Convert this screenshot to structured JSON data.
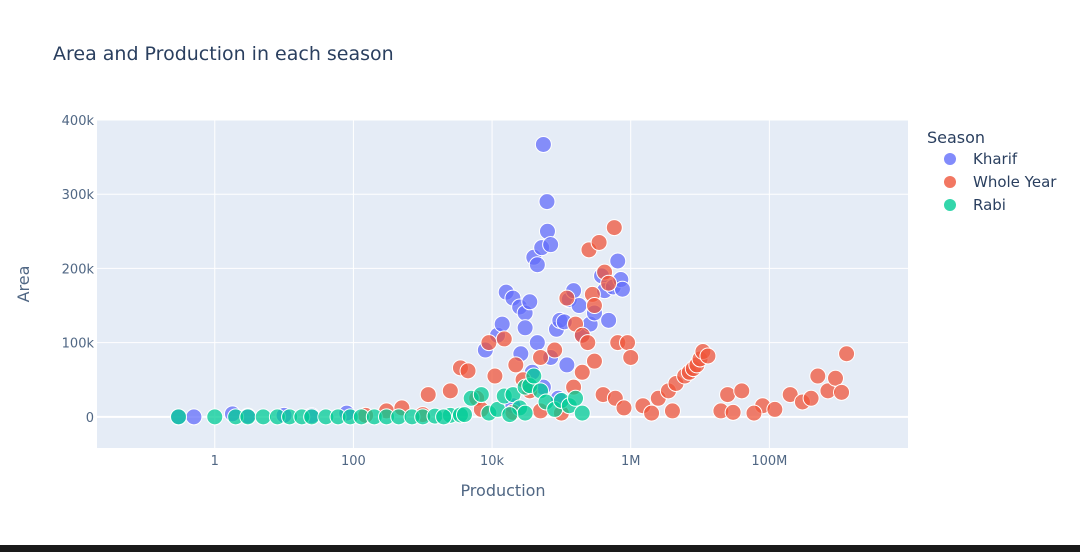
{
  "chart_data": {
    "type": "scatter",
    "title": "Area and Production in each season",
    "xlabel": "Production",
    "ylabel": "Area",
    "x_scale": "log",
    "xlim": [
      0.02,
      10000000000
    ],
    "ylim": [
      -42000,
      400000
    ],
    "x_ticks": [
      {
        "value": 1,
        "label": "1"
      },
      {
        "value": 100,
        "label": "100"
      },
      {
        "value": 10000,
        "label": "10k"
      },
      {
        "value": 1000000,
        "label": "1M"
      },
      {
        "value": 100000000,
        "label": "100M"
      }
    ],
    "y_ticks": [
      {
        "value": 0,
        "label": "0"
      },
      {
        "value": 100000,
        "label": "100k"
      },
      {
        "value": 200000,
        "label": "200k"
      },
      {
        "value": 300000,
        "label": "300k"
      },
      {
        "value": 400000,
        "label": "400k"
      }
    ],
    "grid": true,
    "plot_background": "#e5ecf6",
    "legend": {
      "title": "Season",
      "placement": "right",
      "entries": [
        "Kharif",
        "Whole Year",
        "Rabi"
      ]
    },
    "series": [
      {
        "name": "Kharif",
        "color": "#636efa",
        "points": [
          [
            0.3,
            0
          ],
          [
            0.5,
            0
          ],
          [
            1.8,
            4000
          ],
          [
            3,
            1000
          ],
          [
            10,
            2000
          ],
          [
            25,
            1500
          ],
          [
            80,
            5000
          ],
          [
            8000,
            90000
          ],
          [
            12000,
            110000
          ],
          [
            14000,
            125000
          ],
          [
            16000,
            168000
          ],
          [
            20000,
            160000
          ],
          [
            25000,
            148000
          ],
          [
            30000,
            140000
          ],
          [
            35000,
            155000
          ],
          [
            40000,
            215000
          ],
          [
            45000,
            205000
          ],
          [
            52000,
            228000
          ],
          [
            55000,
            367000
          ],
          [
            62000,
            290000
          ],
          [
            63000,
            250000
          ],
          [
            70000,
            232000
          ],
          [
            85000,
            118000
          ],
          [
            95000,
            130000
          ],
          [
            110000,
            128000
          ],
          [
            130000,
            158000
          ],
          [
            150000,
            170000
          ],
          [
            180000,
            150000
          ],
          [
            200000,
            110000
          ],
          [
            260000,
            125000
          ],
          [
            300000,
            140000
          ],
          [
            380000,
            190000
          ],
          [
            420000,
            170000
          ],
          [
            480000,
            130000
          ],
          [
            560000,
            175000
          ],
          [
            650000,
            210000
          ],
          [
            720000,
            185000
          ],
          [
            760000,
            172000
          ],
          [
            30000,
            120000
          ],
          [
            45000,
            100000
          ],
          [
            70000,
            80000
          ],
          [
            120000,
            70000
          ],
          [
            26000,
            85000
          ],
          [
            38000,
            60000
          ],
          [
            55000,
            40000
          ],
          [
            90000,
            25000
          ],
          [
            20000,
            15000
          ]
        ]
      },
      {
        "name": "Whole Year",
        "color": "#ef553b",
        "points": [
          [
            150,
            2000
          ],
          [
            300,
            8000
          ],
          [
            500,
            12000
          ],
          [
            1200,
            30000
          ],
          [
            2500,
            35000
          ],
          [
            3500,
            66000
          ],
          [
            4500,
            62000
          ],
          [
            6000,
            25000
          ],
          [
            9000,
            100000
          ],
          [
            11000,
            55000
          ],
          [
            15000,
            105000
          ],
          [
            22000,
            70000
          ],
          [
            28000,
            50000
          ],
          [
            35000,
            35000
          ],
          [
            50000,
            80000
          ],
          [
            80000,
            90000
          ],
          [
            120000,
            160000
          ],
          [
            160000,
            125000
          ],
          [
            200000,
            110000
          ],
          [
            240000,
            100000
          ],
          [
            250000,
            225000
          ],
          [
            280000,
            165000
          ],
          [
            300000,
            150000
          ],
          [
            350000,
            235000
          ],
          [
            420000,
            195000
          ],
          [
            480000,
            180000
          ],
          [
            580000,
            255000
          ],
          [
            650000,
            100000
          ],
          [
            900000,
            100000
          ],
          [
            1000000,
            80000
          ],
          [
            300000,
            75000
          ],
          [
            200000,
            60000
          ],
          [
            150000,
            40000
          ],
          [
            400000,
            30000
          ],
          [
            600000,
            25000
          ],
          [
            1500000,
            15000
          ],
          [
            2500000,
            25000
          ],
          [
            3500000,
            35000
          ],
          [
            4500000,
            45000
          ],
          [
            6000000,
            55000
          ],
          [
            7000000,
            60000
          ],
          [
            8000000,
            65000
          ],
          [
            9000000,
            70000
          ],
          [
            10000000,
            78000
          ],
          [
            11000000,
            88000
          ],
          [
            13000000,
            82000
          ],
          [
            25000000,
            30000
          ],
          [
            40000000,
            35000
          ],
          [
            80000000,
            15000
          ],
          [
            120000000,
            10000
          ],
          [
            200000000,
            30000
          ],
          [
            300000000,
            20000
          ],
          [
            400000000,
            25000
          ],
          [
            500000000,
            55000
          ],
          [
            700000000,
            35000
          ],
          [
            900000000,
            52000
          ],
          [
            1100000000,
            33000
          ],
          [
            1300000000,
            85000
          ],
          [
            20000000,
            8000
          ],
          [
            30000000,
            6000
          ],
          [
            60000000,
            5000
          ],
          [
            4000000,
            8000
          ],
          [
            2000000,
            5000
          ],
          [
            800000,
            12000
          ],
          [
            100000,
            5000
          ],
          [
            50000,
            8000
          ],
          [
            20000,
            6000
          ],
          [
            7000,
            10000
          ],
          [
            1000,
            3000
          ]
        ]
      },
      {
        "name": "Rabi",
        "color": "#00cc96",
        "points": [
          [
            0.3,
            0
          ],
          [
            1,
            0
          ],
          [
            2,
            0
          ],
          [
            3,
            0
          ],
          [
            5,
            0
          ],
          [
            8,
            0
          ],
          [
            12,
            0
          ],
          [
            18,
            0
          ],
          [
            25,
            0
          ],
          [
            40,
            0
          ],
          [
            60,
            0
          ],
          [
            90,
            0
          ],
          [
            130,
            0
          ],
          [
            200,
            0
          ],
          [
            300,
            0
          ],
          [
            450,
            0
          ],
          [
            700,
            0
          ],
          [
            1000,
            0
          ],
          [
            1500,
            1000
          ],
          [
            2500,
            2000
          ],
          [
            3500,
            2500
          ],
          [
            5000,
            25000
          ],
          [
            7000,
            30000
          ],
          [
            9000,
            5000
          ],
          [
            12000,
            10000
          ],
          [
            15000,
            28000
          ],
          [
            20000,
            30000
          ],
          [
            25000,
            12000
          ],
          [
            30000,
            40000
          ],
          [
            35000,
            42000
          ],
          [
            40000,
            55000
          ],
          [
            50000,
            35000
          ],
          [
            60000,
            20000
          ],
          [
            80000,
            10000
          ],
          [
            100000,
            22000
          ],
          [
            130000,
            15000
          ],
          [
            160000,
            25000
          ],
          [
            200000,
            5000
          ],
          [
            30000,
            5000
          ],
          [
            18000,
            3000
          ],
          [
            2000,
            0
          ],
          [
            4000,
            3000
          ]
        ]
      }
    ]
  }
}
